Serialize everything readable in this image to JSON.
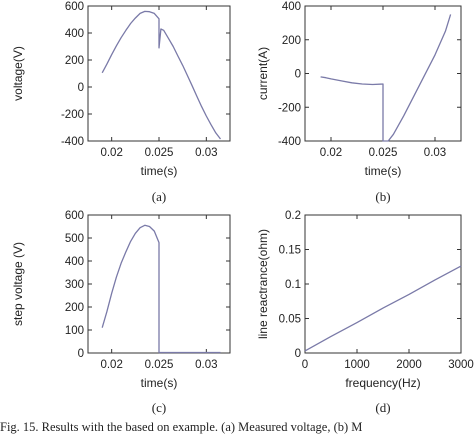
{
  "caption": "Fig. 15.   Results with the based on example. (a) Measured voltage, (b) M",
  "chart_data": [
    {
      "panel": "(a)",
      "type": "line",
      "xlabel": "time(s)",
      "ylabel": "voltage(V)",
      "xlim": [
        0.0175,
        0.0325
      ],
      "ylim": [
        -400,
        600
      ],
      "xticks": [
        0.02,
        0.025,
        0.03
      ],
      "xtick_labels": [
        "0.02",
        "0.025",
        "0.03"
      ],
      "yticks": [
        -400,
        -200,
        0,
        200,
        400,
        600
      ],
      "ytick_labels": [
        "-400",
        "-200",
        "0",
        "200",
        "400",
        "600"
      ],
      "series": [
        {
          "x": [
            0.019,
            0.0195,
            0.02,
            0.0205,
            0.021,
            0.0215,
            0.022,
            0.0225,
            0.023,
            0.0235,
            0.024,
            0.0245,
            0.025,
            0.025,
            0.0252,
            0.0255,
            0.026,
            0.0265,
            0.027,
            0.0275,
            0.028,
            0.0285,
            0.029,
            0.0295,
            0.03,
            0.0305,
            0.031,
            0.0315
          ],
          "y": [
            105,
            170,
            240,
            305,
            365,
            420,
            470,
            510,
            545,
            560,
            558,
            545,
            505,
            290,
            430,
            420,
            360,
            300,
            230,
            160,
            85,
            10,
            -70,
            -145,
            -215,
            -280,
            -340,
            -385
          ]
        }
      ]
    },
    {
      "panel": "(b)",
      "type": "line",
      "xlabel": "time(s)",
      "ylabel": "current(A)",
      "xlim": [
        0.0175,
        0.0325
      ],
      "ylim": [
        -400,
        400
      ],
      "xticks": [
        0.02,
        0.025,
        0.03
      ],
      "xtick_labels": [
        "0.02",
        "0.025",
        "0.03"
      ],
      "yticks": [
        -400,
        -200,
        0,
        200,
        400
      ],
      "ytick_labels": [
        "-400",
        "-200",
        "0",
        "200",
        "400"
      ],
      "series": [
        {
          "x": [
            0.019,
            0.0195,
            0.02,
            0.021,
            0.022,
            0.023,
            0.024,
            0.025,
            0.025,
            0.0255,
            0.026,
            0.027,
            0.028,
            0.029,
            0.03,
            0.031,
            0.0315
          ],
          "y": [
            -20,
            -25,
            -32,
            -44,
            -55,
            -62,
            -65,
            -62,
            -400,
            -400,
            -360,
            -250,
            -130,
            -10,
            110,
            250,
            350
          ]
        }
      ]
    },
    {
      "panel": "(c)",
      "type": "line",
      "xlabel": "time(s)",
      "ylabel": "step voltage (V)",
      "xlim": [
        0.0175,
        0.0325
      ],
      "ylim": [
        0,
        600
      ],
      "xticks": [
        0.02,
        0.025,
        0.03
      ],
      "xtick_labels": [
        "0.02",
        "0.025",
        "0.03"
      ],
      "yticks": [
        0,
        100,
        200,
        300,
        400,
        500,
        600
      ],
      "ytick_labels": [
        "0",
        "100",
        "200",
        "300",
        "400",
        "500",
        "600"
      ],
      "series": [
        {
          "x": [
            0.019,
            0.0195,
            0.02,
            0.0205,
            0.021,
            0.0215,
            0.022,
            0.0225,
            0.023,
            0.0235,
            0.024,
            0.0245,
            0.025,
            0.025,
            0.026,
            0.028,
            0.03,
            0.0315
          ],
          "y": [
            110,
            180,
            260,
            330,
            390,
            440,
            485,
            520,
            545,
            555,
            550,
            530,
            480,
            2,
            2,
            2,
            2,
            2
          ]
        }
      ]
    },
    {
      "panel": "(d)",
      "type": "line",
      "xlabel": "frequency(Hz)",
      "ylabel": "line reactrance(ohm)",
      "xlim": [
        0,
        3000
      ],
      "ylim": [
        0,
        0.2
      ],
      "xticks": [
        0,
        1000,
        2000,
        3000
      ],
      "xtick_labels": [
        "0",
        "1000",
        "2000",
        "3000"
      ],
      "yticks": [
        0,
        0.05,
        0.1,
        0.15,
        0.2
      ],
      "ytick_labels": [
        "0",
        "0.05",
        "0.1",
        "0.15",
        "0.2"
      ],
      "series": [
        {
          "x": [
            0,
            500,
            1000,
            1500,
            2000,
            2500,
            3000
          ],
          "y": [
            0.003,
            0.024,
            0.044,
            0.065,
            0.085,
            0.106,
            0.126
          ]
        }
      ]
    }
  ]
}
